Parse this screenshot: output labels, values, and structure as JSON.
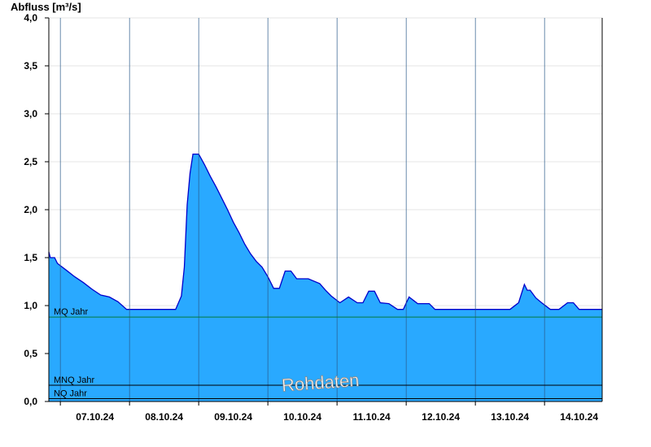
{
  "chart_data": {
    "type": "area",
    "ylabel": "Abfluss [m³/s]",
    "ylim": [
      0,
      4.0
    ],
    "y_ticks": [
      0,
      0.5,
      1.0,
      1.5,
      2.0,
      2.5,
      3.0,
      3.5,
      4.0
    ],
    "y_tick_labels": [
      "0,0",
      "0,5",
      "1,0",
      "1,5",
      "2,0",
      "2,5",
      "3,0",
      "3,5",
      "4,0"
    ],
    "x_range_days": [
      "06.10.24 20:00",
      "14.10.24 20:00"
    ],
    "x_labels": [
      "07.10.24",
      "08.10.24",
      "09.10.24",
      "10.10.24",
      "11.10.24",
      "12.10.24",
      "13.10.24",
      "14.10.24"
    ],
    "grid": true,
    "fill_color": "#29a9ff",
    "line_color": "#0000cc",
    "reference_lines": [
      {
        "name": "MQ Jahr",
        "value": 0.88,
        "color": "#007a3d"
      },
      {
        "name": "MNQ Jahr",
        "value": 0.17,
        "color": "#000000"
      },
      {
        "name": "NQ Jahr",
        "value": 0.03,
        "color": "#000000"
      }
    ],
    "annotation": "Rohdaten",
    "series": [
      {
        "x": [
          "06.10.24 20:00",
          "06.10.24 20:30",
          "06.10.24 22:00",
          "06.10.24 23:00",
          "07.10.24 02:00",
          "07.10.24 05:00",
          "07.10.24 08:00",
          "07.10.24 11:00",
          "07.10.24 14:00",
          "07.10.24 17:00",
          "07.10.24 20:00",
          "07.10.24 23:00",
          "08.10.24 04:00",
          "08.10.24 08:00",
          "08.10.24 12:00",
          "08.10.24 16:00",
          "08.10.24 18:00",
          "08.10.24 19:00",
          "08.10.24 20:00",
          "08.10.24 21:00",
          "08.10.24 22:00",
          "09.10.24 00:00",
          "09.10.24 02:00",
          "09.10.24 04:00",
          "09.10.24 06:00",
          "09.10.24 08:00",
          "09.10.24 10:00",
          "09.10.24 12:00",
          "09.10.24 14:00",
          "09.10.24 16:00",
          "09.10.24 18:00",
          "09.10.24 20:00",
          "09.10.24 22:00",
          "10.10.24 00:00",
          "10.10.24 02:00",
          "10.10.24 04:00",
          "10.10.24 06:00",
          "10.10.24 08:00",
          "10.10.24 10:00",
          "10.10.24 12:00",
          "10.10.24 14:00",
          "10.10.24 18:00",
          "10.10.24 20:00",
          "10.10.24 22:00",
          "11.10.24 01:00",
          "11.10.24 04:00",
          "11.10.24 07:00",
          "11.10.24 09:00",
          "11.10.24 11:00",
          "11.10.24 13:00",
          "11.10.24 15:00",
          "11.10.24 18:00",
          "11.10.24 21:00",
          "11.10.24 23:00",
          "12.10.24 01:00",
          "12.10.24 04:00",
          "12.10.24 08:00",
          "12.10.24 10:00",
          "12.10.24 12:00",
          "12.10.24 14:00",
          "12.10.24 16:00",
          "12.10.24 18:00",
          "12.10.24 20:00",
          "13.10.24 00:00",
          "13.10.24 06:00",
          "13.10.24 12:00",
          "13.10.24 15:00",
          "13.10.24 17:00",
          "13.10.24 18:00",
          "13.10.24 19:00",
          "13.10.24 21:00",
          "13.10.24 23:00",
          "14.10.24 02:00",
          "14.10.24 05:00",
          "14.10.24 08:00",
          "14.10.24 10:00",
          "14.10.24 12:00",
          "14.10.24 14:00",
          "14.10.24 17:00",
          "14.10.24 20:00"
        ],
        "values": [
          1.56,
          1.5,
          1.5,
          1.44,
          1.37,
          1.3,
          1.24,
          1.17,
          1.11,
          1.09,
          1.04,
          0.96,
          0.96,
          0.96,
          0.96,
          0.96,
          1.1,
          1.4,
          2.05,
          2.38,
          2.58,
          2.58,
          2.47,
          2.35,
          2.24,
          2.12,
          2.0,
          1.87,
          1.76,
          1.64,
          1.54,
          1.46,
          1.4,
          1.3,
          1.18,
          1.18,
          1.36,
          1.36,
          1.28,
          1.28,
          1.28,
          1.23,
          1.16,
          1.1,
          1.03,
          1.09,
          1.03,
          1.03,
          1.15,
          1.15,
          1.03,
          1.02,
          0.96,
          0.96,
          1.09,
          1.02,
          1.02,
          0.96,
          0.96,
          0.96,
          0.96,
          0.96,
          0.96,
          0.96,
          0.96,
          0.96,
          1.03,
          1.22,
          1.16,
          1.16,
          1.08,
          1.03,
          0.96,
          0.96,
          1.03,
          1.03,
          0.96,
          0.96,
          0.96,
          0.96
        ]
      }
    ]
  }
}
